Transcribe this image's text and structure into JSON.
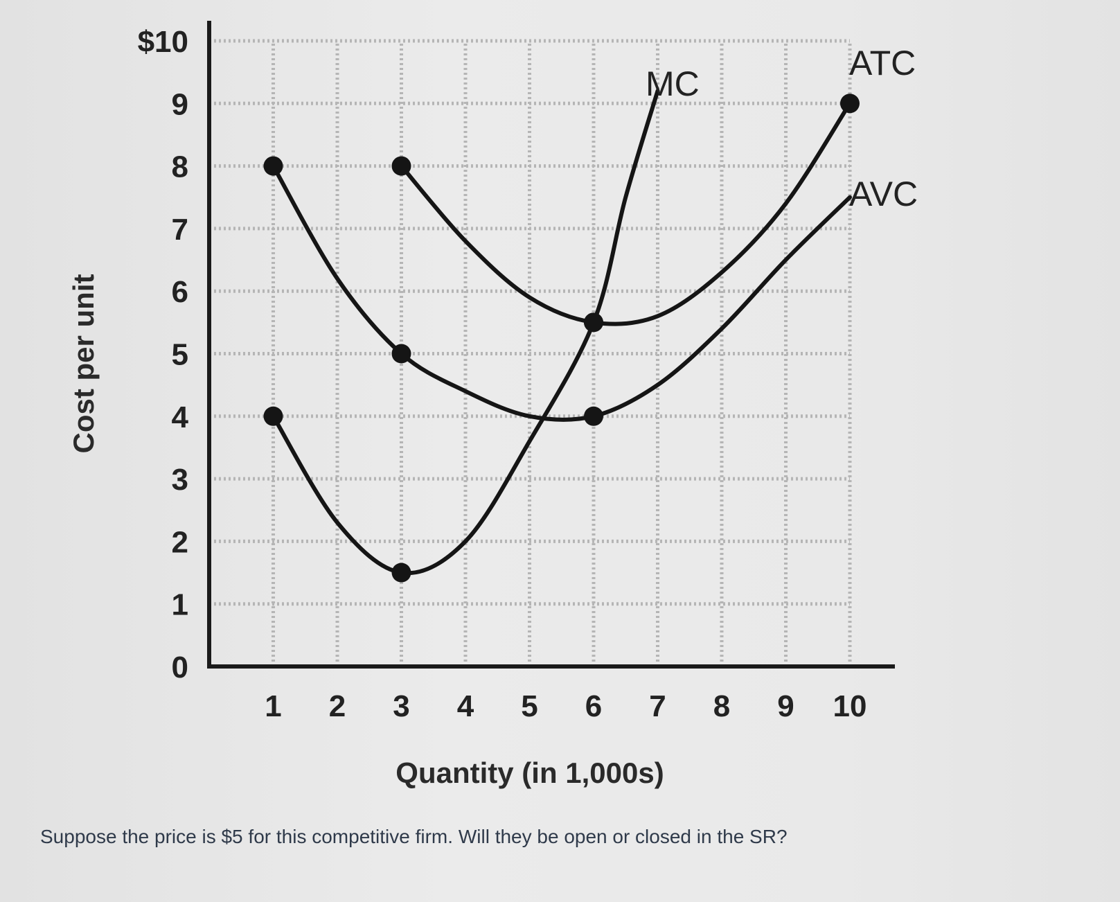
{
  "question": "Suppose the price is $5 for this competitive firm. Will they be open or closed in the SR?",
  "chart_data": {
    "type": "line",
    "xlabel": "Quantity (in 1,000s)",
    "ylabel": "Cost per unit",
    "xlim": [
      0,
      10
    ],
    "ylim": [
      0,
      10
    ],
    "x_ticks": [
      "1",
      "2",
      "3",
      "4",
      "5",
      "6",
      "7",
      "8",
      "9",
      "10"
    ],
    "y_ticks": [
      "0",
      "1",
      "2",
      "3",
      "4",
      "5",
      "6",
      "7",
      "8",
      "9",
      "$10"
    ],
    "grid": true,
    "series": [
      {
        "name": "MC",
        "points": [
          [
            1,
            4
          ],
          [
            2,
            2.3
          ],
          [
            3,
            1.5
          ],
          [
            4,
            2.0
          ],
          [
            5,
            3.6
          ],
          [
            6,
            5.5
          ],
          [
            6.5,
            7.5
          ],
          [
            7,
            9.2
          ]
        ],
        "markers": [
          [
            1,
            4
          ],
          [
            3,
            1.5
          ],
          [
            6,
            5.5
          ]
        ]
      },
      {
        "name": "ATC",
        "points": [
          [
            3,
            8
          ],
          [
            4,
            6.8
          ],
          [
            5,
            5.9
          ],
          [
            6,
            5.5
          ],
          [
            7,
            5.6
          ],
          [
            8,
            6.3
          ],
          [
            9,
            7.4
          ],
          [
            10,
            9
          ]
        ],
        "markers": [
          [
            3,
            8
          ],
          [
            6,
            5.5
          ],
          [
            10,
            9
          ]
        ]
      },
      {
        "name": "AVC",
        "points": [
          [
            1,
            8
          ],
          [
            2,
            6.2
          ],
          [
            3,
            5
          ],
          [
            4,
            4.4
          ],
          [
            5,
            4.0
          ],
          [
            6,
            4.0
          ],
          [
            7,
            4.5
          ],
          [
            8,
            5.4
          ],
          [
            9,
            6.5
          ],
          [
            10,
            7.5
          ]
        ],
        "markers": [
          [
            1,
            8
          ],
          [
            3,
            5
          ],
          [
            6,
            4
          ]
        ]
      }
    ],
    "colors": {
      "curve": "#151515",
      "grid": "#b5b5b5",
      "axis": "#1a1a1a"
    }
  }
}
